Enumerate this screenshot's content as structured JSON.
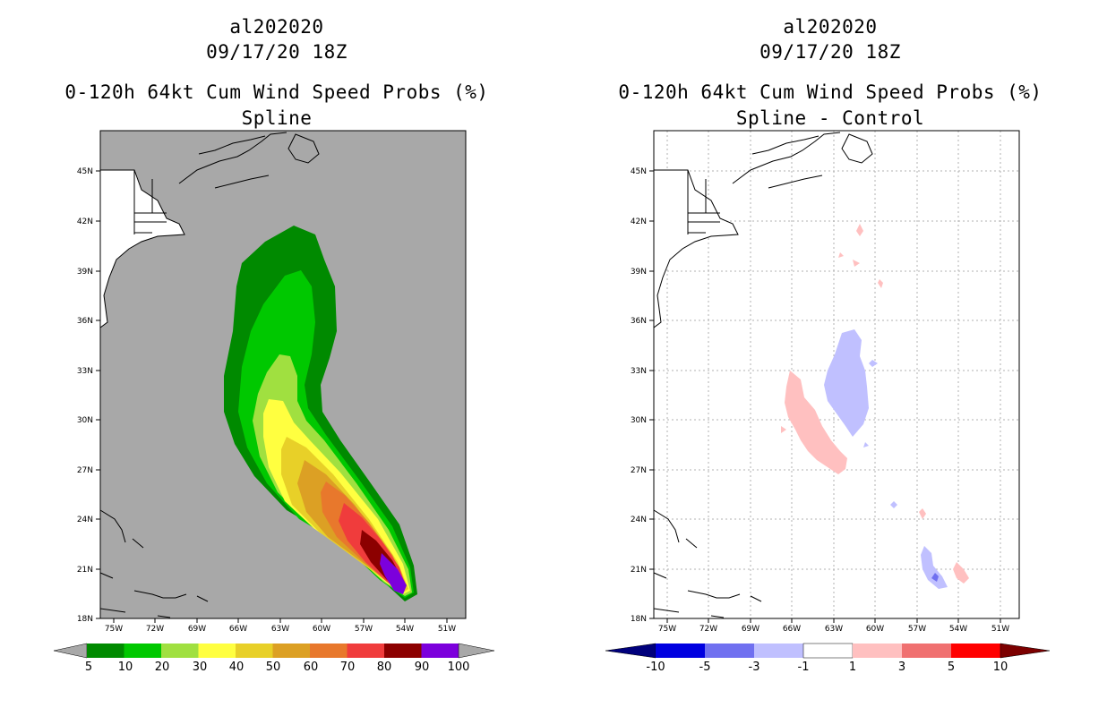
{
  "storm_id": "al202020",
  "datetime": "09/17/20 18Z",
  "colors": {
    "ocean": "#a8a8a8",
    "land": "#ffffff",
    "grid": "#b0b0b0",
    "p5": "#008a00",
    "p10": "#00c800",
    "p20": "#a0e040",
    "p30": "#ffff40",
    "p40": "#e8d028",
    "p50": "#dca024",
    "p60": "#e8782c",
    "p70": "#f03c3c",
    "p80": "#8c0000",
    "p90": "#7c00dc"
  },
  "lat_labels": [
    "45N",
    "42N",
    "39N",
    "36N",
    "33N",
    "30N",
    "27N",
    "24N",
    "21N",
    "18N"
  ],
  "lon_labels": [
    "75W",
    "72W",
    "69W",
    "66W",
    "63W",
    "60W",
    "57W",
    "54W",
    "51W"
  ],
  "left": {
    "title_line1": "al202020",
    "title_line2": "09/17/20 18Z",
    "title_line3": "0-120h 64kt Cum Wind Speed Probs (%)",
    "title_line4": "Spline",
    "colorbar": {
      "labels": [
        "5",
        "10",
        "20",
        "30",
        "40",
        "50",
        "60",
        "70",
        "80",
        "90",
        "100"
      ],
      "colors": [
        "#008a00",
        "#00c800",
        "#a0e040",
        "#ffff40",
        "#e8d028",
        "#dca024",
        "#e8782c",
        "#f03c3c",
        "#8c0000",
        "#7c00dc"
      ],
      "under_color": "#a8a8a8",
      "over_color": "#a8a8a8"
    }
  },
  "right": {
    "title_line1": "al202020",
    "title_line2": "09/17/20 18Z",
    "title_line3": "0-120h 64kt Cum Wind Speed Probs (%)",
    "title_line4": "Spline - Control",
    "colorbar": {
      "labels": [
        "-10",
        "-5",
        "-3",
        "-1",
        "1",
        "3",
        "5",
        "10"
      ],
      "colors": [
        "#0000e0",
        "#7070f0",
        "#c0c0ff",
        "#ffffff",
        "#ffc0c0",
        "#f07070",
        "#ff0000"
      ],
      "under_color": "#00007c",
      "over_color": "#7c0000"
    }
  }
}
